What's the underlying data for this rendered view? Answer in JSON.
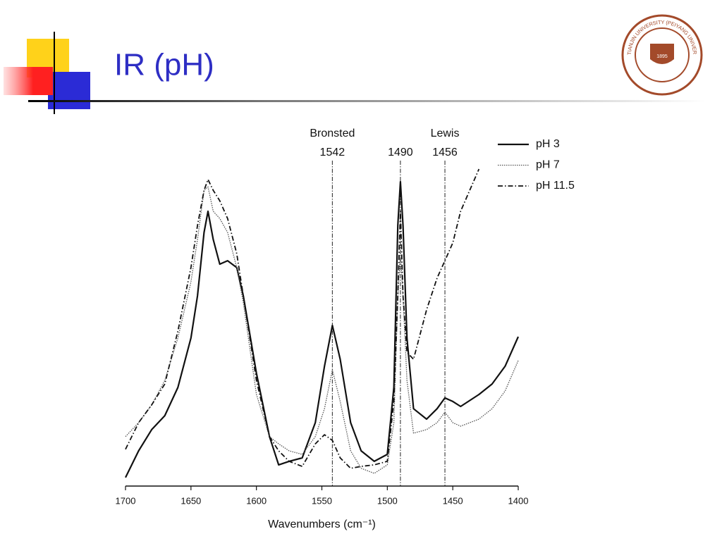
{
  "slide": {
    "title": "IR (pH)"
  },
  "logo": {
    "text": "TIANJIN UNIVERSITY (PEIYANG UNIVERSITY)",
    "year": "1895"
  },
  "chart_data": {
    "type": "line",
    "xlabel": "Wavenumbers (cm⁻¹)",
    "xlim": [
      1700,
      1400
    ],
    "xticks": [
      1700,
      1650,
      1600,
      1550,
      1500,
      1450,
      1400
    ],
    "ylim": [
      0,
      100
    ],
    "markers": [
      {
        "x": 1542,
        "note": "Bronsted"
      },
      {
        "x": 1490
      },
      {
        "x": 1456,
        "note": "Lewis"
      }
    ],
    "x": [
      1700,
      1690,
      1680,
      1670,
      1660,
      1650,
      1645,
      1640,
      1637,
      1633,
      1628,
      1622,
      1615,
      1610,
      1600,
      1590,
      1583,
      1575,
      1565,
      1555,
      1548,
      1542,
      1536,
      1528,
      1520,
      1510,
      1500,
      1495,
      1492,
      1490,
      1488,
      1485,
      1480,
      1470,
      1462,
      1456,
      1450,
      1444,
      1430,
      1420,
      1410,
      1400
    ],
    "series": [
      {
        "name": "pH 3",
        "color": "#111111",
        "dash": "none",
        "width": 2.2,
        "values": [
          2.7,
          11.1,
          17.8,
          22.2,
          31.1,
          46.7,
          60,
          80,
          86.7,
          77.8,
          70,
          71.1,
          68.9,
          60,
          35.6,
          15.6,
          6.7,
          7.8,
          8.9,
          20,
          37.8,
          50.7,
          40,
          20,
          11.1,
          7.8,
          10,
          31.1,
          82.2,
          96,
          82.2,
          46.7,
          24.4,
          21.1,
          24.4,
          27.8,
          26.7,
          25.1,
          28.9,
          32.2,
          37.8,
          47.1
        ]
      },
      {
        "name": "pH 7",
        "color": "#555555",
        "dash": "1.5 1.5",
        "width": 1.3,
        "values": [
          15.6,
          20,
          25.6,
          33.3,
          46.7,
          64.4,
          77.8,
          93.3,
          94.4,
          86.7,
          84.4,
          80,
          68.9,
          57.8,
          28.9,
          15.6,
          13.3,
          11.1,
          10,
          15.6,
          24.4,
          36.7,
          26.7,
          11.1,
          5.6,
          4,
          6.7,
          20,
          60,
          73.3,
          60,
          33.3,
          16.7,
          17.8,
          20,
          23.3,
          20,
          18.9,
          21.1,
          24.4,
          30,
          39.6
        ]
      },
      {
        "name": "pH 11.5",
        "color": "#111111",
        "dash": "7 3 1.5 3",
        "width": 1.8,
        "values": [
          11.6,
          20,
          25.6,
          32.2,
          48.9,
          68.9,
          82.2,
          93.3,
          96.7,
          93.3,
          90,
          84.4,
          73.3,
          60,
          33.3,
          15.6,
          11.1,
          7.8,
          6.2,
          13.3,
          16.2,
          14.4,
          8.9,
          5.6,
          6.2,
          6.7,
          7.8,
          26.7,
          60,
          86.7,
          60,
          42.2,
          40,
          55.6,
          65.6,
          71.1,
          76.7,
          86.7,
          100,
          null,
          null,
          null
        ]
      }
    ]
  }
}
